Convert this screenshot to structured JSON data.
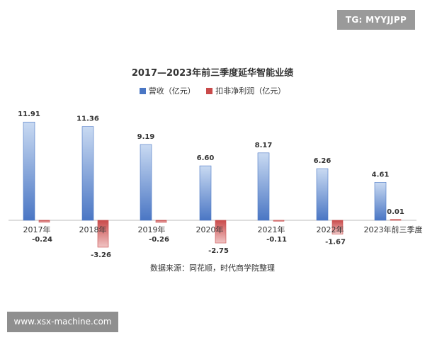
{
  "watermarks": {
    "top_right": "TG: MYYJJPP",
    "bottom_left": "www.xsx-machine.com"
  },
  "source_note": "数据来源：同花顺，时代商学院整理",
  "colors": {
    "revenue_bar": "#4a76c4",
    "profit_bar": "#c94a4a",
    "background": "#ffffff"
  },
  "chart_data": {
    "type": "bar",
    "title": "2017—2023年前三季度延华智能业绩",
    "categories": [
      "2017年",
      "2018年",
      "2019年",
      "2020年",
      "2021年",
      "2022年",
      "2023年前三季度"
    ],
    "series": [
      {
        "name": "营收（亿元）",
        "values": [
          11.91,
          11.36,
          9.19,
          6.6,
          8.17,
          6.26,
          4.61
        ],
        "labels": [
          "11.91",
          "11.36",
          "9.19",
          "6.60",
          "8.17",
          "6.26",
          "4.61"
        ]
      },
      {
        "name": "扣非净利润（亿元）",
        "values": [
          -0.24,
          -3.26,
          -0.26,
          -2.75,
          -0.11,
          -1.67,
          0.01
        ],
        "labels": [
          "-0.24",
          "-3.26",
          "-0.26",
          "-2.75",
          "-0.11",
          "-1.67",
          "0.01"
        ]
      }
    ],
    "ylim": [
      -3.3,
      12
    ],
    "legend_position": "top-center",
    "grid": false,
    "xlabel": "",
    "ylabel": ""
  }
}
